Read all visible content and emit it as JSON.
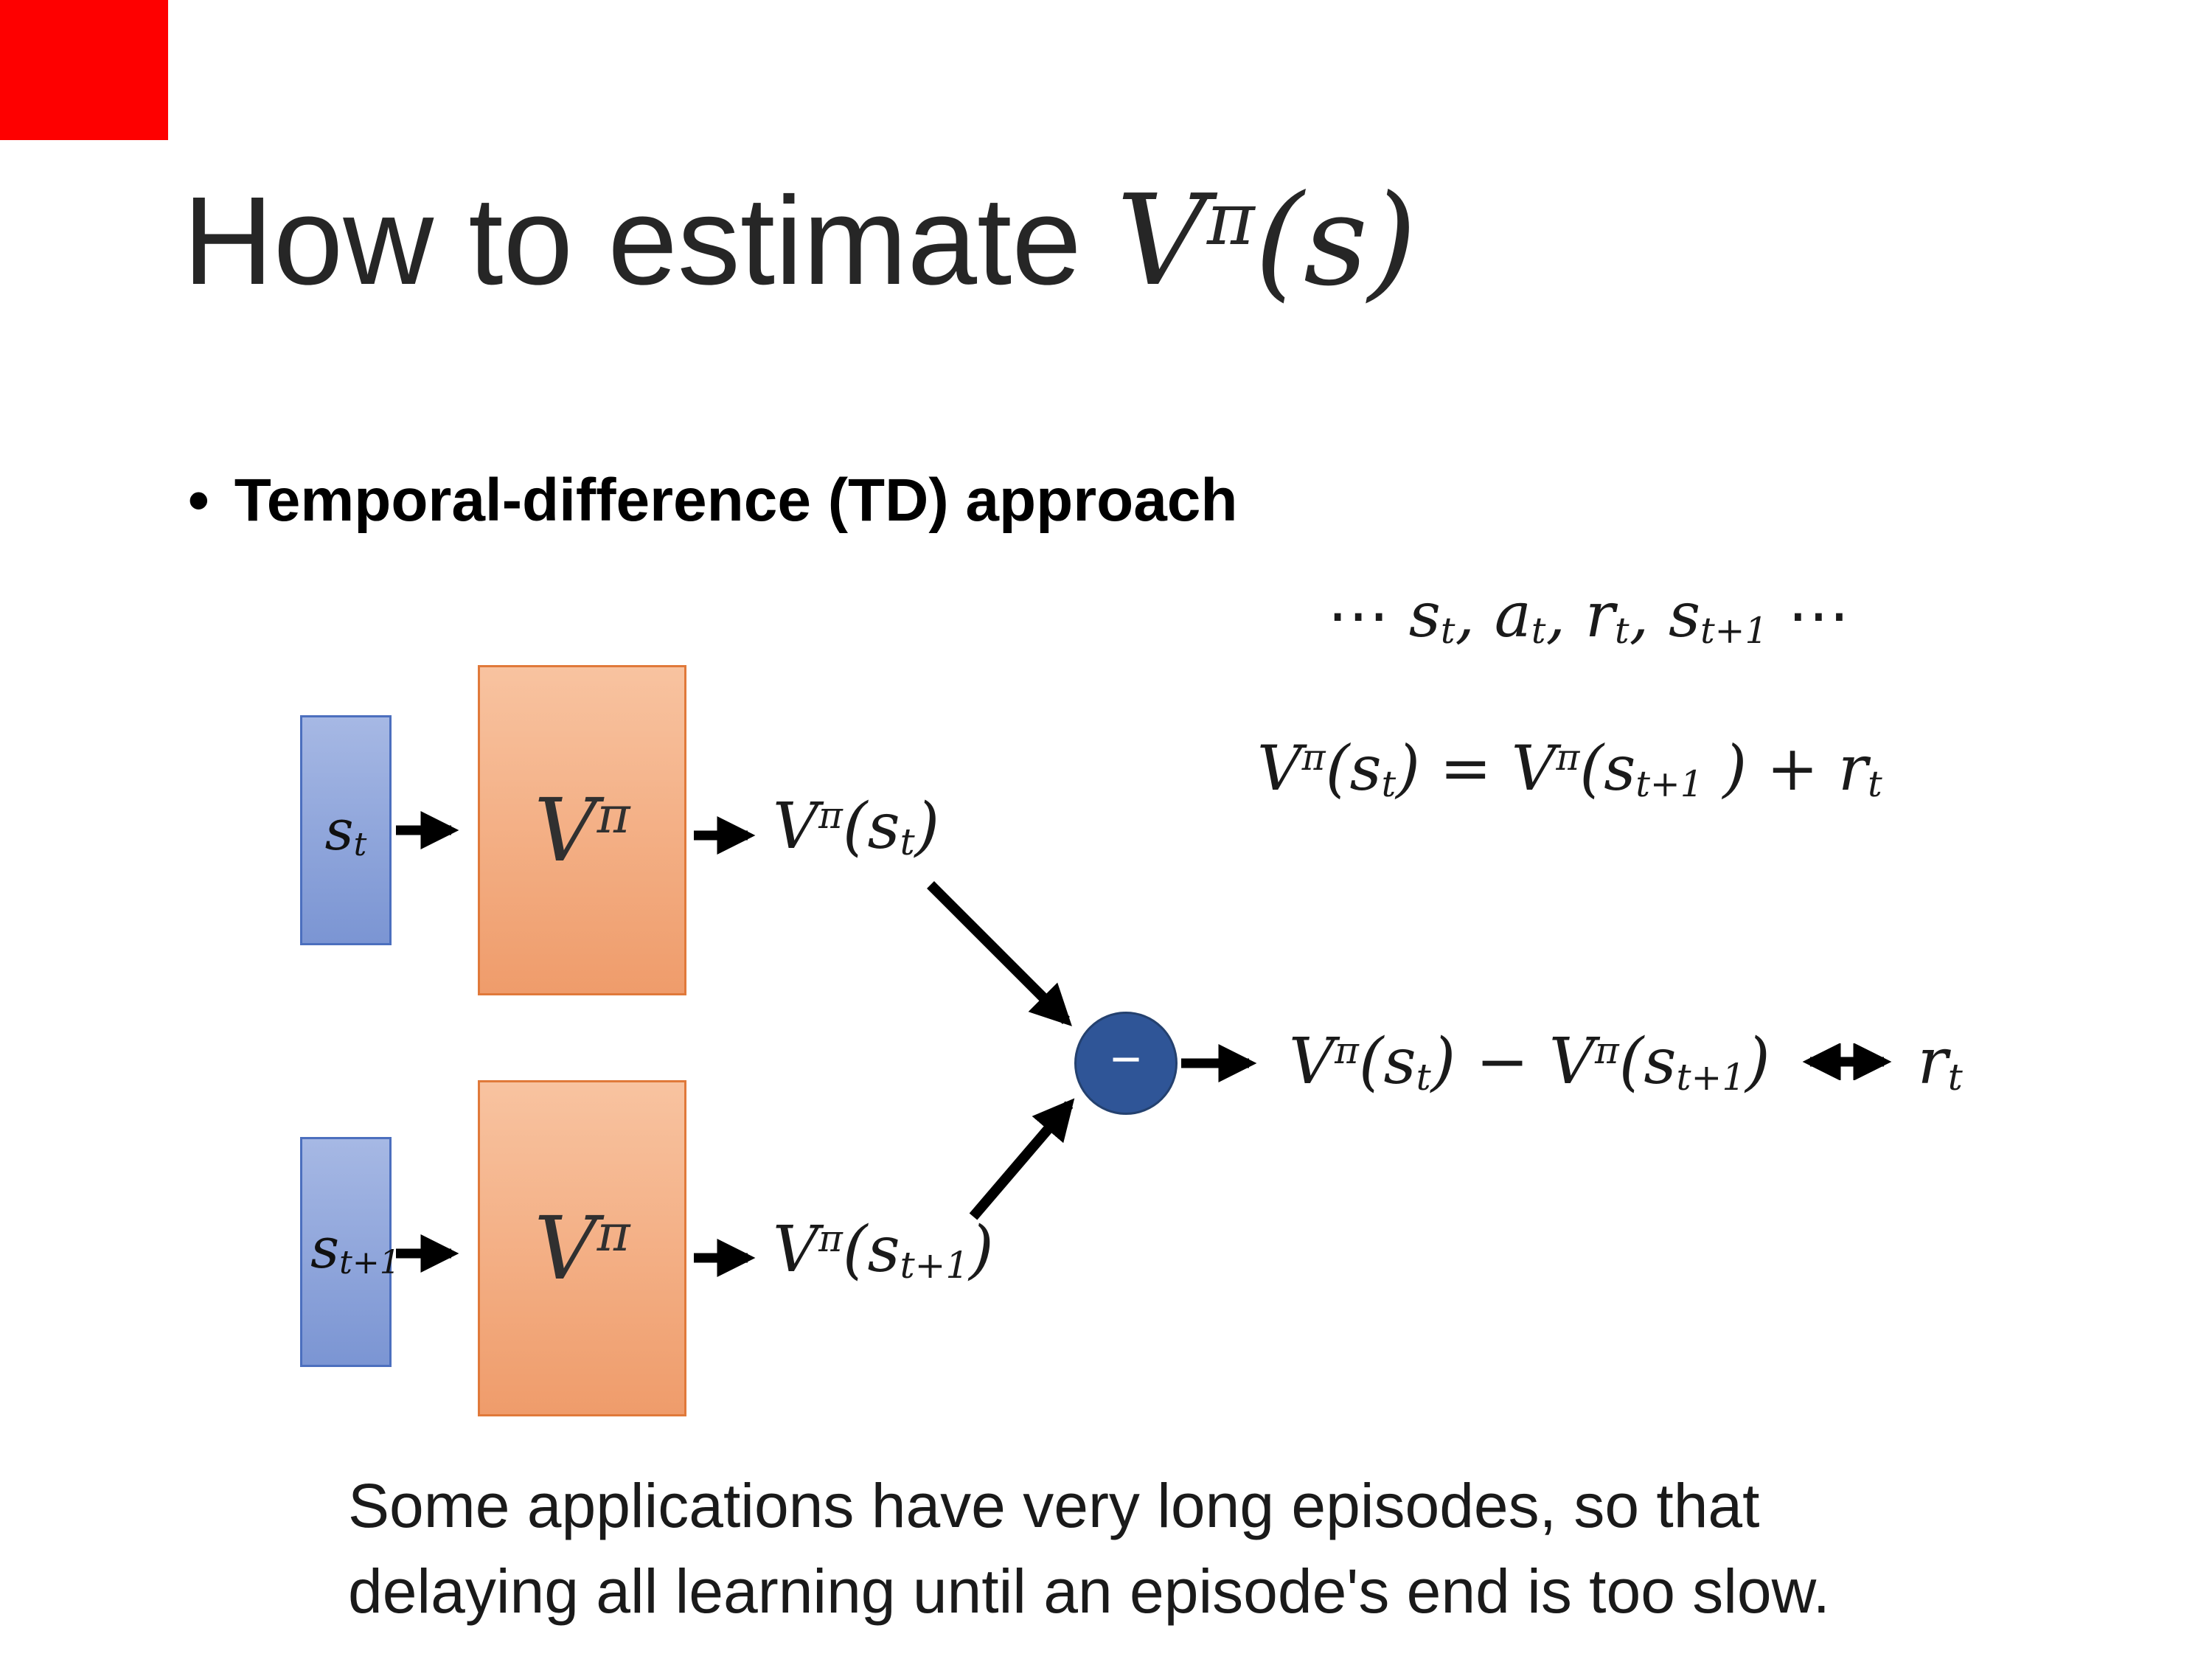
{
  "title": {
    "plain": "How to estimate ",
    "math": [
      "V",
      {
        "sup": "π"
      },
      "(s)"
    ]
  },
  "bullet": {
    "marker": "•",
    "text": "Temporal-difference (TD) approach"
  },
  "sequence": [
    "⋯ s",
    {
      "sub": "t"
    },
    ", a",
    {
      "sub": "t"
    },
    ", r",
    {
      "sub": "t"
    },
    ", s",
    {
      "sub": "t+1"
    },
    " ⋯"
  ],
  "equation": [
    "V",
    {
      "sup": "π"
    },
    "(s",
    {
      "sub": "t"
    },
    ") = V",
    {
      "sup": "π"
    },
    "(s",
    {
      "sub": "t+1"
    },
    " ) + r",
    {
      "sub": "t"
    }
  ],
  "diagram": {
    "state_top": [
      "s",
      {
        "sub": "t"
      }
    ],
    "state_bottom": [
      "s",
      {
        "sub": "t+1"
      }
    ],
    "value_net_top": [
      "V",
      {
        "sup": "π"
      }
    ],
    "value_net_bottom": [
      "V",
      {
        "sup": "π"
      }
    ],
    "out_top": [
      "V",
      {
        "sup": "π"
      },
      "(s",
      {
        "sub": "t"
      },
      ")"
    ],
    "out_bottom": [
      "V",
      {
        "sup": "π"
      },
      "(s",
      {
        "sub": "t+1"
      },
      ")"
    ],
    "minus": "−",
    "result_left": [
      "V",
      {
        "sup": "π"
      },
      "(s",
      {
        "sub": "t"
      },
      ") − V",
      {
        "sup": "π"
      },
      "(s",
      {
        "sub": "t+1"
      },
      ")"
    ],
    "result_right": [
      "r",
      {
        "sub": "t"
      }
    ]
  },
  "caption": {
    "lines": [
      "Some applications have very long episodes, so that",
      "delaying all learning until an episode's end is too slow."
    ]
  },
  "colors": {
    "accent_bar": "#fe0000",
    "state_box_fill": "#7b95d3",
    "state_box_border": "#4c6fbe",
    "value_box_fill": "#ef9c6b",
    "value_box_border": "#e0793a",
    "minus_node_fill": "#2f5597",
    "arrow": "#000000"
  }
}
